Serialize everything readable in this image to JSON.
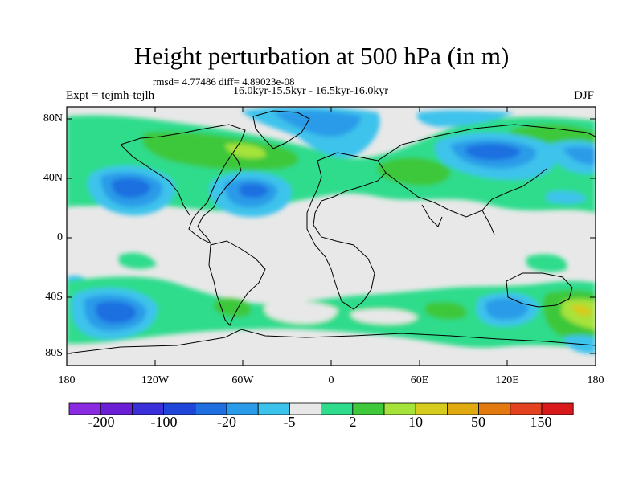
{
  "title": "Height perturbation at 500 hPa (in m)",
  "stats": "rmsd= 4.77486 diff= 4.89023e-08",
  "period": "16.0kyr-15.5kyr - 16.5kyr-16.0kyr",
  "experiment": "Expt = tejmh-tejlh",
  "season": "DJF",
  "lat_labels": [
    "80N",
    "40N",
    "0",
    "40S",
    "80S"
  ],
  "lon_labels": [
    "180",
    "120W",
    "60W",
    "0",
    "60E",
    "120E",
    "180"
  ],
  "colorbar": {
    "colors": [
      "#8a2be2",
      "#6a1fd6",
      "#3a2fd9",
      "#1f46d8",
      "#1f6fe0",
      "#2a9be8",
      "#3cc3ec",
      "#e8e8e8",
      "#2fdc8c",
      "#3ec83a",
      "#a6e33a",
      "#d6cc1e",
      "#e0aa10",
      "#e27a10",
      "#e2421e",
      "#d81a1a"
    ],
    "labels": [
      "-200",
      "-100",
      "-20",
      "-5",
      "2",
      "10",
      "50",
      "150"
    ]
  }
}
